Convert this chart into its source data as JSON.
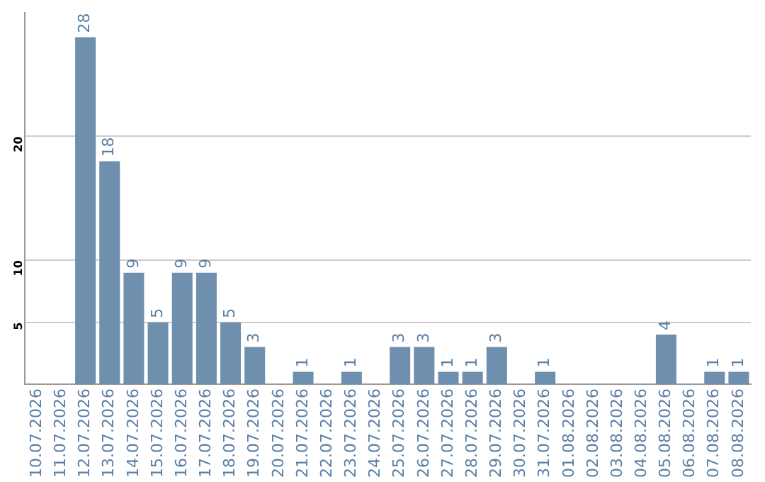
{
  "chart_data": {
    "type": "bar",
    "categories": [
      "10.07.2026",
      "11.07.2026",
      "12.07.2026",
      "13.07.2026",
      "14.07.2026",
      "15.07.2026",
      "16.07.2026",
      "17.07.2026",
      "18.07.2026",
      "19.07.2026",
      "20.07.2026",
      "21.07.2026",
      "22.07.2026",
      "23.07.2026",
      "24.07.2026",
      "25.07.2026",
      "26.07.2026",
      "27.07.2026",
      "28.07.2026",
      "29.07.2026",
      "30.07.2026",
      "31.07.2026",
      "01.08.2026",
      "02.08.2026",
      "03.08.2026",
      "04.08.2026",
      "05.08.2026",
      "06.08.2026",
      "07.08.2026",
      "08.08.2026"
    ],
    "values": [
      0,
      0,
      28,
      18,
      9,
      5,
      9,
      9,
      5,
      3,
      0,
      1,
      0,
      1,
      0,
      3,
      3,
      1,
      1,
      3,
      0,
      1,
      0,
      0,
      0,
      0,
      4,
      0,
      1,
      1
    ],
    "value_labels": [
      null,
      null,
      "28",
      "18",
      "9",
      "5",
      "9",
      "9",
      "5",
      "3",
      null,
      "1",
      null,
      "1",
      null,
      "3",
      "3",
      "1",
      "1",
      "3",
      null,
      "1",
      null,
      null,
      null,
      null,
      "4",
      null,
      "1",
      "1"
    ],
    "color": "#6f8fae",
    "ylim": [
      0,
      30
    ],
    "yticks": [
      5,
      10,
      20
    ],
    "grid": "y",
    "legend": false
  }
}
